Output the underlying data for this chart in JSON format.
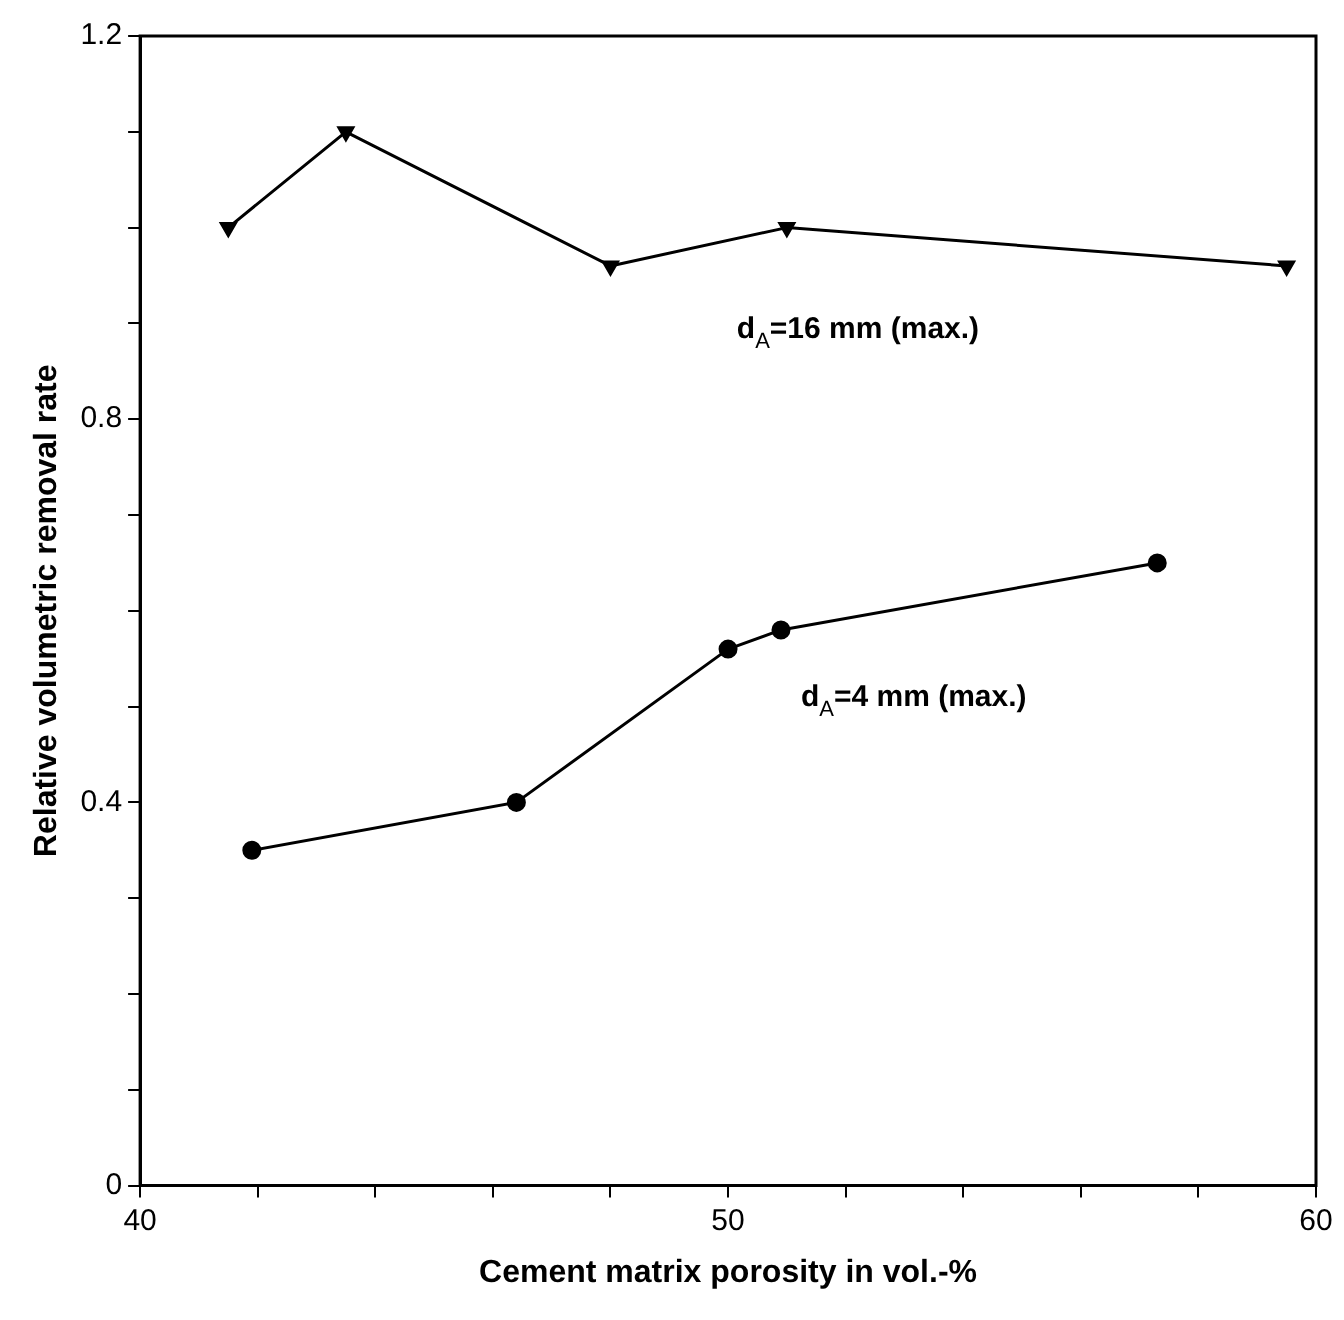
{
  "chart_data": {
    "type": "line",
    "xlabel": "Cement matrix porosity in vol.-%",
    "ylabel": "Relative volumetric removal rate",
    "xlim": [
      40,
      60
    ],
    "xticks": [
      40,
      {
        "value": 42,
        "label": null
      },
      {
        "value": 44,
        "label": null
      },
      {
        "value": 46,
        "label": null
      },
      {
        "value": 48,
        "label": null
      },
      50,
      {
        "value": 52,
        "label": null
      },
      {
        "value": 54,
        "label": null
      },
      {
        "value": 56,
        "label": null
      },
      {
        "value": 58,
        "label": null
      },
      60
    ],
    "ylim": [
      0,
      1.2
    ],
    "yticks": [
      0,
      {
        "value": 0.1,
        "label": null
      },
      {
        "value": 0.2,
        "label": null
      },
      {
        "value": 0.3,
        "label": null
      },
      0.4,
      {
        "value": 0.5,
        "label": null
      },
      {
        "value": 0.6,
        "label": null
      },
      {
        "value": 0.7,
        "label": null
      },
      0.8,
      {
        "value": 0.9,
        "label": null
      },
      {
        "value": 1.0,
        "label": null
      },
      {
        "value": 1.1,
        "label": null
      },
      1.2
    ],
    "grid": false,
    "legend": false,
    "line_style": "solid",
    "series": [
      {
        "name": "d$_{A}$=16 mm (max.)",
        "color": "#000000",
        "marker": "triangle",
        "x": [
          41.5,
          43.5,
          48,
          51,
          59.5
        ],
        "values": [
          1.0,
          1.1,
          0.96,
          1.0,
          0.96
        ]
      },
      {
        "name": "d$_{A}$=4 mm (max.)",
        "color": "#000000",
        "marker": "circle",
        "x": [
          41.9,
          46.4,
          50,
          50.9,
          57.3
        ],
        "values": [
          0.35,
          0.4,
          0.56,
          0.58,
          0.65
        ]
      }
    ]
  }
}
